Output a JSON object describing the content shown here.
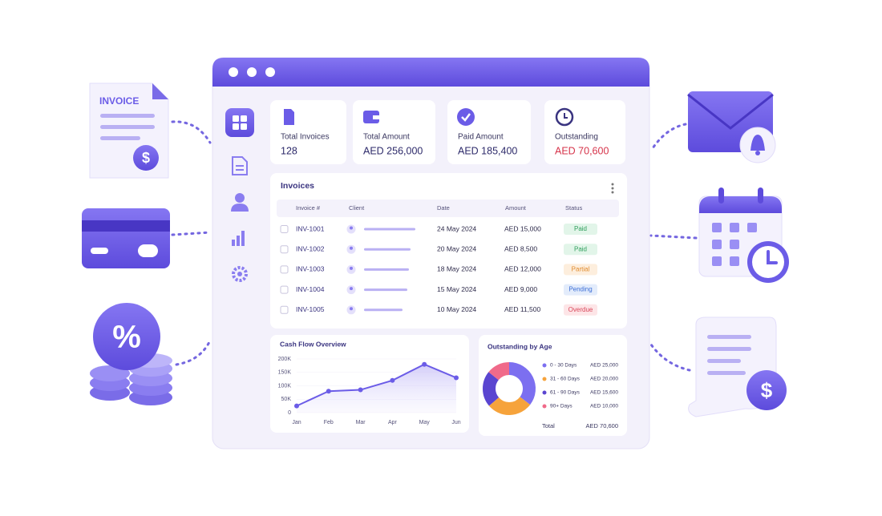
{
  "decorations": {
    "invoice_label": "INVOICE",
    "percent": "%",
    "dollar": "$"
  },
  "cards": [
    {
      "label": "Total Invoices",
      "value": "128",
      "value_color": "#2d2a6a"
    },
    {
      "label": "Total Amount",
      "value": "AED 256,000",
      "value_color": "#2d2a6a"
    },
    {
      "label": "Paid Amount",
      "value": "AED 185,400",
      "value_color": "#2d2a6a"
    },
    {
      "label": "Outstanding",
      "value": "AED 70,600",
      "value_color": "#d6334a"
    }
  ],
  "invoices": {
    "title": "Invoices",
    "headers": [
      "Invoice #",
      "Client",
      "Date",
      "Amount",
      "Status"
    ],
    "rows": [
      {
        "invoice": "INV-1001",
        "date": "24 May 2024",
        "amount": "AED 15,000",
        "status": "Paid",
        "status_color": "#2e9e5b",
        "status_bg": "#e2f5e9"
      },
      {
        "invoice": "INV-1002",
        "date": "20 May 2024",
        "amount": "AED 8,500",
        "status": "Paid",
        "status_color": "#2e9e5b",
        "status_bg": "#e2f5e9"
      },
      {
        "invoice": "INV-1003",
        "date": "18 May 2024",
        "amount": "AED 12,000",
        "status": "Partial",
        "status_color": "#e08a2c",
        "status_bg": "#fdeedd"
      },
      {
        "invoice": "INV-1004",
        "date": "15 May 2024",
        "amount": "AED 9,000",
        "status": "Pending",
        "status_color": "#3d6fd6",
        "status_bg": "#e3ecfb"
      },
      {
        "invoice": "INV-1005",
        "date": "10 May 2024",
        "amount": "AED 11,500",
        "status": "Overdue",
        "status_color": "#d9475a",
        "status_bg": "#fde5e7"
      }
    ]
  },
  "chart_data": [
    {
      "type": "line",
      "title": "Cash Flow Overview",
      "categories": [
        "Jan",
        "Feb",
        "Mar",
        "Apr",
        "May",
        "Jun"
      ],
      "values": [
        25000,
        80000,
        85000,
        120000,
        180000,
        130000
      ],
      "color": "#6b5ce7",
      "ylim": [
        0,
        200000
      ],
      "yticks": [
        0,
        {
          "value": 50000,
          "label": "50K"
        },
        {
          "value": 100000,
          "label": "100K"
        },
        {
          "value": 150000,
          "label": "150K"
        },
        {
          "value": 200000,
          "label": "200K"
        }
      ]
    },
    {
      "type": "pie",
      "title": "Outstanding by Age",
      "categories": [
        "0 - 30 Days",
        "31 - 60 Days",
        "61 - 90 Days",
        "90+ Days"
      ],
      "values": [
        25000,
        20000,
        15600,
        10000
      ],
      "value_labels": [
        "AED 25,000",
        "AED 20,000",
        "AED 15,600",
        "AED 10,000"
      ],
      "colors": [
        "#7c6ff0",
        "#f6a33b",
        "#5a45d0",
        "#f06a8a"
      ],
      "total": {
        "label": "Total",
        "value": "AED 70,600"
      }
    }
  ]
}
